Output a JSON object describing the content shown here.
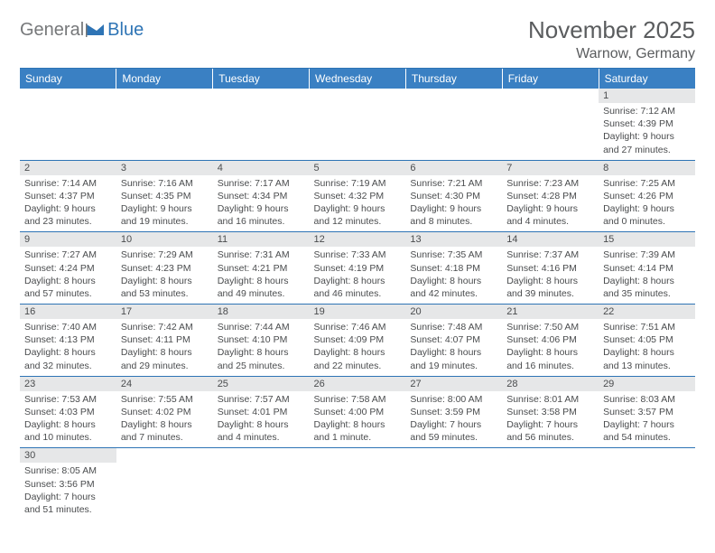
{
  "brand": {
    "part1": "General",
    "part2": "Blue"
  },
  "title": {
    "month_year": "November 2025",
    "location": "Warnow, Germany"
  },
  "colors": {
    "header_bg": "#3a80c3",
    "accent": "#2e74b5",
    "daynum_bg": "#e6e7e8",
    "text": "#4a4c4e",
    "logo_gray": "#76787a"
  },
  "weekdays": [
    "Sunday",
    "Monday",
    "Tuesday",
    "Wednesday",
    "Thursday",
    "Friday",
    "Saturday"
  ],
  "grid": [
    [
      {
        "n": "",
        "lines": []
      },
      {
        "n": "",
        "lines": []
      },
      {
        "n": "",
        "lines": []
      },
      {
        "n": "",
        "lines": []
      },
      {
        "n": "",
        "lines": []
      },
      {
        "n": "",
        "lines": []
      },
      {
        "n": "1",
        "lines": [
          "Sunrise: 7:12 AM",
          "Sunset: 4:39 PM",
          "Daylight: 9 hours",
          "and 27 minutes."
        ]
      }
    ],
    [
      {
        "n": "2",
        "lines": [
          "Sunrise: 7:14 AM",
          "Sunset: 4:37 PM",
          "Daylight: 9 hours",
          "and 23 minutes."
        ]
      },
      {
        "n": "3",
        "lines": [
          "Sunrise: 7:16 AM",
          "Sunset: 4:35 PM",
          "Daylight: 9 hours",
          "and 19 minutes."
        ]
      },
      {
        "n": "4",
        "lines": [
          "Sunrise: 7:17 AM",
          "Sunset: 4:34 PM",
          "Daylight: 9 hours",
          "and 16 minutes."
        ]
      },
      {
        "n": "5",
        "lines": [
          "Sunrise: 7:19 AM",
          "Sunset: 4:32 PM",
          "Daylight: 9 hours",
          "and 12 minutes."
        ]
      },
      {
        "n": "6",
        "lines": [
          "Sunrise: 7:21 AM",
          "Sunset: 4:30 PM",
          "Daylight: 9 hours",
          "and 8 minutes."
        ]
      },
      {
        "n": "7",
        "lines": [
          "Sunrise: 7:23 AM",
          "Sunset: 4:28 PM",
          "Daylight: 9 hours",
          "and 4 minutes."
        ]
      },
      {
        "n": "8",
        "lines": [
          "Sunrise: 7:25 AM",
          "Sunset: 4:26 PM",
          "Daylight: 9 hours",
          "and 0 minutes."
        ]
      }
    ],
    [
      {
        "n": "9",
        "lines": [
          "Sunrise: 7:27 AM",
          "Sunset: 4:24 PM",
          "Daylight: 8 hours",
          "and 57 minutes."
        ]
      },
      {
        "n": "10",
        "lines": [
          "Sunrise: 7:29 AM",
          "Sunset: 4:23 PM",
          "Daylight: 8 hours",
          "and 53 minutes."
        ]
      },
      {
        "n": "11",
        "lines": [
          "Sunrise: 7:31 AM",
          "Sunset: 4:21 PM",
          "Daylight: 8 hours",
          "and 49 minutes."
        ]
      },
      {
        "n": "12",
        "lines": [
          "Sunrise: 7:33 AM",
          "Sunset: 4:19 PM",
          "Daylight: 8 hours",
          "and 46 minutes."
        ]
      },
      {
        "n": "13",
        "lines": [
          "Sunrise: 7:35 AM",
          "Sunset: 4:18 PM",
          "Daylight: 8 hours",
          "and 42 minutes."
        ]
      },
      {
        "n": "14",
        "lines": [
          "Sunrise: 7:37 AM",
          "Sunset: 4:16 PM",
          "Daylight: 8 hours",
          "and 39 minutes."
        ]
      },
      {
        "n": "15",
        "lines": [
          "Sunrise: 7:39 AM",
          "Sunset: 4:14 PM",
          "Daylight: 8 hours",
          "and 35 minutes."
        ]
      }
    ],
    [
      {
        "n": "16",
        "lines": [
          "Sunrise: 7:40 AM",
          "Sunset: 4:13 PM",
          "Daylight: 8 hours",
          "and 32 minutes."
        ]
      },
      {
        "n": "17",
        "lines": [
          "Sunrise: 7:42 AM",
          "Sunset: 4:11 PM",
          "Daylight: 8 hours",
          "and 29 minutes."
        ]
      },
      {
        "n": "18",
        "lines": [
          "Sunrise: 7:44 AM",
          "Sunset: 4:10 PM",
          "Daylight: 8 hours",
          "and 25 minutes."
        ]
      },
      {
        "n": "19",
        "lines": [
          "Sunrise: 7:46 AM",
          "Sunset: 4:09 PM",
          "Daylight: 8 hours",
          "and 22 minutes."
        ]
      },
      {
        "n": "20",
        "lines": [
          "Sunrise: 7:48 AM",
          "Sunset: 4:07 PM",
          "Daylight: 8 hours",
          "and 19 minutes."
        ]
      },
      {
        "n": "21",
        "lines": [
          "Sunrise: 7:50 AM",
          "Sunset: 4:06 PM",
          "Daylight: 8 hours",
          "and 16 minutes."
        ]
      },
      {
        "n": "22",
        "lines": [
          "Sunrise: 7:51 AM",
          "Sunset: 4:05 PM",
          "Daylight: 8 hours",
          "and 13 minutes."
        ]
      }
    ],
    [
      {
        "n": "23",
        "lines": [
          "Sunrise: 7:53 AM",
          "Sunset: 4:03 PM",
          "Daylight: 8 hours",
          "and 10 minutes."
        ]
      },
      {
        "n": "24",
        "lines": [
          "Sunrise: 7:55 AM",
          "Sunset: 4:02 PM",
          "Daylight: 8 hours",
          "and 7 minutes."
        ]
      },
      {
        "n": "25",
        "lines": [
          "Sunrise: 7:57 AM",
          "Sunset: 4:01 PM",
          "Daylight: 8 hours",
          "and 4 minutes."
        ]
      },
      {
        "n": "26",
        "lines": [
          "Sunrise: 7:58 AM",
          "Sunset: 4:00 PM",
          "Daylight: 8 hours",
          "and 1 minute."
        ]
      },
      {
        "n": "27",
        "lines": [
          "Sunrise: 8:00 AM",
          "Sunset: 3:59 PM",
          "Daylight: 7 hours",
          "and 59 minutes."
        ]
      },
      {
        "n": "28",
        "lines": [
          "Sunrise: 8:01 AM",
          "Sunset: 3:58 PM",
          "Daylight: 7 hours",
          "and 56 minutes."
        ]
      },
      {
        "n": "29",
        "lines": [
          "Sunrise: 8:03 AM",
          "Sunset: 3:57 PM",
          "Daylight: 7 hours",
          "and 54 minutes."
        ]
      }
    ],
    [
      {
        "n": "30",
        "lines": [
          "Sunrise: 8:05 AM",
          "Sunset: 3:56 PM",
          "Daylight: 7 hours",
          "and 51 minutes."
        ]
      },
      {
        "n": "",
        "lines": []
      },
      {
        "n": "",
        "lines": []
      },
      {
        "n": "",
        "lines": []
      },
      {
        "n": "",
        "lines": []
      },
      {
        "n": "",
        "lines": []
      },
      {
        "n": "",
        "lines": []
      }
    ]
  ]
}
